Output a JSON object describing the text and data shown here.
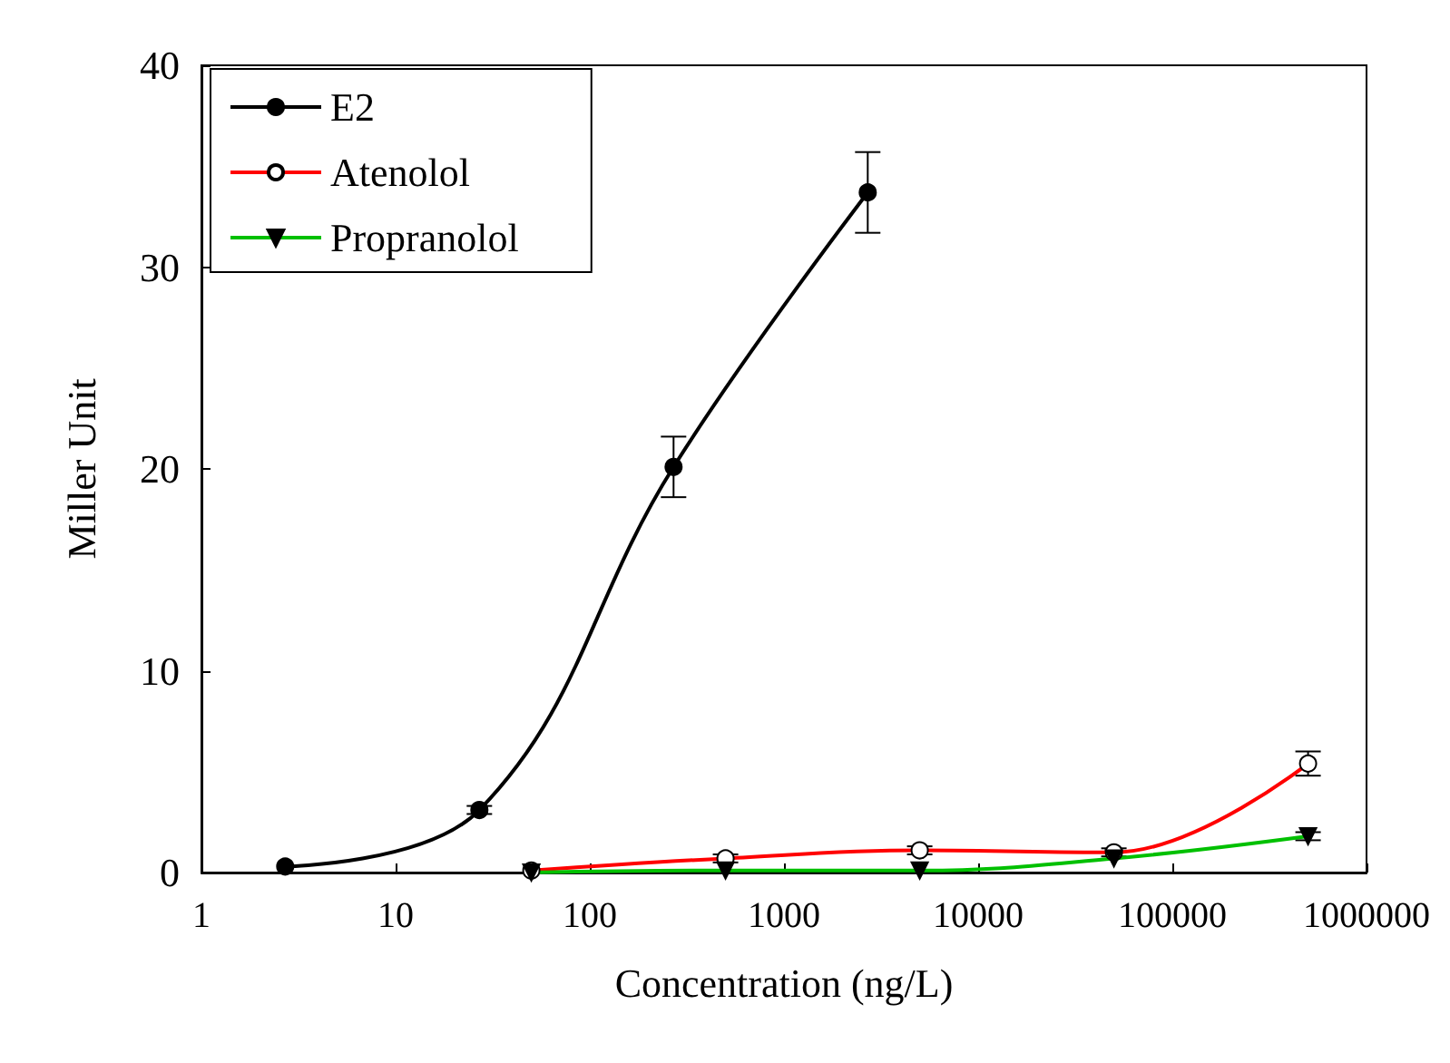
{
  "chart_data": {
    "type": "line",
    "xlabel": "Concentration (ng/L)",
    "ylabel": "Miller Unit",
    "log": "x",
    "xlim": [
      1,
      1000000
    ],
    "xticks": [
      1,
      10,
      100,
      1000,
      10000,
      100000,
      1000000
    ],
    "ylim": [
      0,
      40
    ],
    "yticks": [
      0,
      10,
      20,
      30,
      40
    ],
    "legend": "top left",
    "grid": false,
    "series": [
      {
        "name": "E2",
        "color": "#000000",
        "marker": "circle",
        "x": [
          2.7,
          27,
          270,
          2700
        ],
        "values": [
          0.3,
          3.1,
          20.1,
          33.7
        ],
        "errors": [
          null,
          0.2,
          1.5,
          2.0
        ]
      },
      {
        "name": "Atenolol",
        "color": "#ff0000",
        "marker": "circle_open",
        "x": [
          50,
          500,
          5000,
          50000,
          500000
        ],
        "values": [
          0.1,
          0.7,
          1.1,
          1.0,
          5.4
        ],
        "errors": [
          null,
          0.2,
          0.2,
          0.2,
          0.6
        ]
      },
      {
        "name": "Propranolol",
        "color": "#00c000",
        "marker": "triangle_down",
        "x": [
          50,
          500,
          5000,
          50000,
          500000
        ],
        "values": [
          0.0,
          0.1,
          0.1,
          0.7,
          1.8
        ],
        "errors": [
          null,
          null,
          null,
          null,
          0.2
        ]
      }
    ]
  }
}
